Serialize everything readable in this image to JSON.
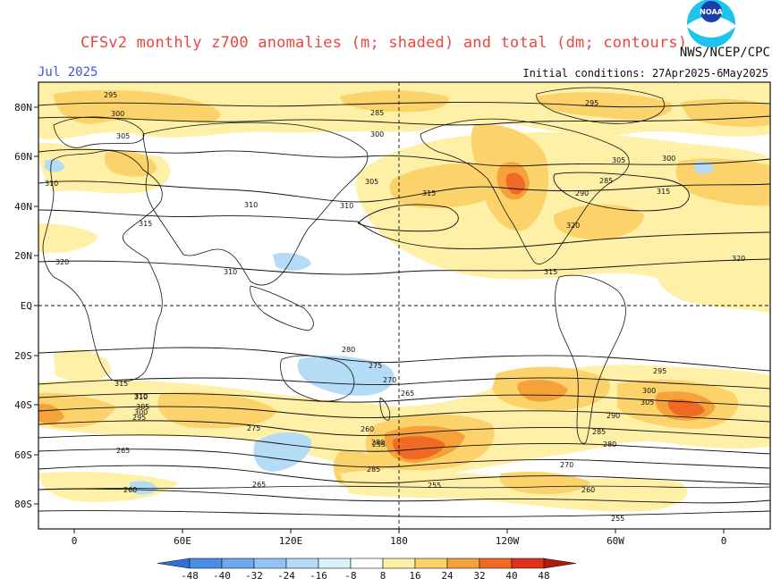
{
  "header": {
    "title": "CFSv2 monthly z700 anomalies (m; shaded) and total (dm; contours)",
    "agency": "NWS/NCEP/CPC",
    "month": "Jul 2025",
    "initial_conditions": "Initial conditions: 27Apr2025-6May2025",
    "logo_text": "NOAA"
  },
  "map": {
    "lat_labels": [
      "80N",
      "60N",
      "40N",
      "20N",
      "EQ",
      "20S",
      "40S",
      "60S",
      "80S"
    ],
    "lon_labels": [
      "0",
      "60E",
      "120E",
      "180",
      "120W",
      "60W",
      "0"
    ],
    "contour_labels": [
      "295",
      "300",
      "305",
      "310",
      "315",
      "320",
      "285",
      "300",
      "305",
      "310",
      "315",
      "320",
      "310",
      "315",
      "320",
      "310",
      "315",
      "305",
      "300",
      "295",
      "290",
      "285",
      "280",
      "275",
      "270",
      "265",
      "260",
      "255",
      "295",
      "300",
      "305",
      "310",
      "315",
      "280",
      "285",
      "265",
      "260",
      "255",
      "310",
      "305",
      "300",
      "295",
      "290",
      "285",
      "280",
      "275",
      "270",
      "265",
      "260",
      "255"
    ]
  },
  "colorbar": {
    "labels": [
      "-48",
      "-40",
      "-32",
      "-24",
      "-16",
      "-8",
      "8",
      "16",
      "24",
      "32",
      "40",
      "48"
    ],
    "colors": [
      "#2f6fd9",
      "#4a8de6",
      "#6ea8ef",
      "#93c3f5",
      "#b4dcf7",
      "#d8f1fb",
      "#ffffff",
      "#fff0a8",
      "#fcd36b",
      "#f6a23a",
      "#ef6a24",
      "#e0321a",
      "#b01a10"
    ]
  }
}
